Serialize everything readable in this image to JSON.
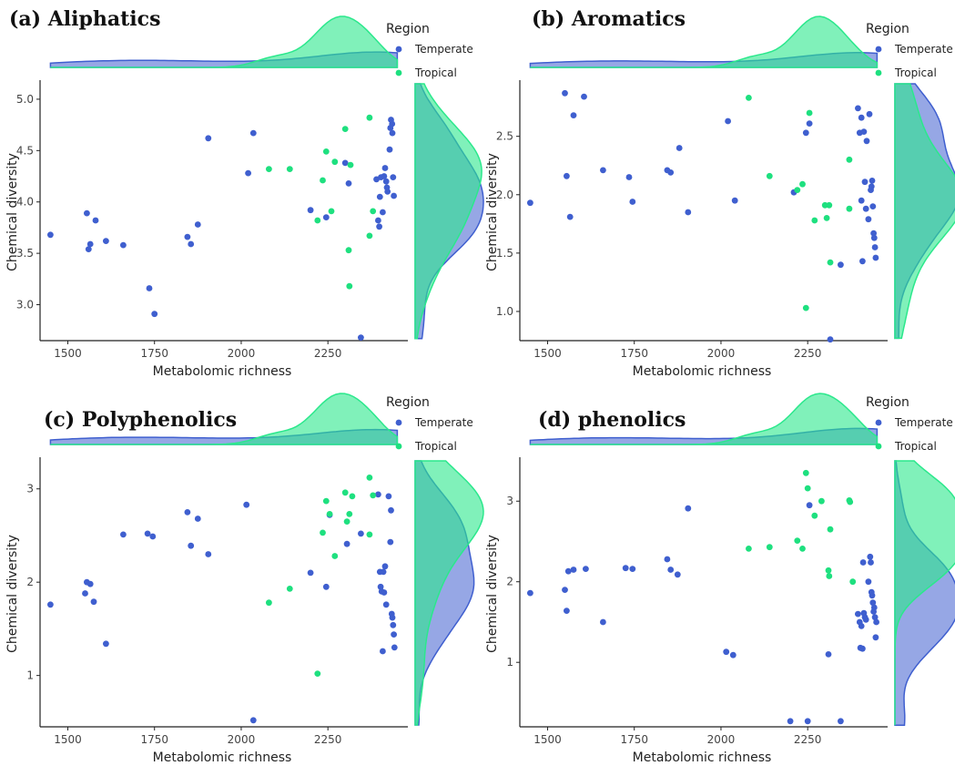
{
  "legend": {
    "title": "Region",
    "items": [
      {
        "label": "Temperate",
        "color": "#3F5FCF"
      },
      {
        "label": "Tropical",
        "color": "#1EE07F"
      }
    ]
  },
  "colors": {
    "temperate_fill": "#3F5FCF",
    "tropical_fill": "#2BE88C"
  },
  "chart_data": [
    {
      "type": "scatter",
      "title": "(a) Aliphatics",
      "xlabel": "Metabolomic richness",
      "ylabel": "Chemical diversity",
      "xlim": [
        1420,
        2470
      ],
      "ylim": [
        2.65,
        5.15
      ],
      "xticks": [
        1500,
        1750,
        2000,
        2250
      ],
      "yticks": [
        3.0,
        3.5,
        4.0,
        4.5,
        5.0
      ],
      "ytick_labels": [
        "3.0",
        "3.5",
        "4.0",
        "4.5",
        "5.0"
      ],
      "grid": false,
      "legend_position": "top-right",
      "series": [
        {
          "name": "Temperate",
          "points": [
            [
              1450,
              3.68
            ],
            [
              1555,
              3.89
            ],
            [
              1560,
              3.54
            ],
            [
              1565,
              3.59
            ],
            [
              1580,
              3.82
            ],
            [
              1610,
              3.62
            ],
            [
              1660,
              3.58
            ],
            [
              1735,
              3.16
            ],
            [
              1750,
              2.91
            ],
            [
              1845,
              3.66
            ],
            [
              1855,
              3.59
            ],
            [
              1875,
              3.78
            ],
            [
              1905,
              4.62
            ],
            [
              2020,
              4.28
            ],
            [
              2035,
              4.67
            ],
            [
              2200,
              3.92
            ],
            [
              2245,
              3.85
            ],
            [
              2300,
              4.38
            ],
            [
              2310,
              4.18
            ],
            [
              2345,
              2.68
            ],
            [
              2390,
              4.22
            ],
            [
              2395,
              3.82
            ],
            [
              2398,
              3.76
            ],
            [
              2400,
              4.05
            ],
            [
              2403,
              4.24
            ],
            [
              2408,
              3.9
            ],
            [
              2412,
              4.25
            ],
            [
              2415,
              4.33
            ],
            [
              2418,
              4.2
            ],
            [
              2420,
              4.14
            ],
            [
              2422,
              4.1
            ],
            [
              2428,
              4.51
            ],
            [
              2430,
              4.72
            ],
            [
              2432,
              4.8
            ],
            [
              2435,
              4.76
            ],
            [
              2436,
              4.67
            ],
            [
              2438,
              4.24
            ],
            [
              2440,
              4.06
            ]
          ]
        },
        {
          "name": "Tropical",
          "points": [
            [
              2080,
              4.32
            ],
            [
              2140,
              4.32
            ],
            [
              2220,
              3.82
            ],
            [
              2235,
              4.21
            ],
            [
              2245,
              4.49
            ],
            [
              2260,
              3.91
            ],
            [
              2270,
              4.39
            ],
            [
              2300,
              4.71
            ],
            [
              2310,
              3.53
            ],
            [
              2312,
              3.18
            ],
            [
              2315,
              4.36
            ],
            [
              2370,
              4.82
            ],
            [
              2370,
              3.67
            ],
            [
              2380,
              3.91
            ]
          ]
        }
      ]
    },
    {
      "type": "scatter",
      "title": "(b) Aromatics",
      "xlabel": "Metabolomic richness",
      "ylabel": "Chemical diversity",
      "xlim": [
        1420,
        2470
      ],
      "ylim": [
        0.75,
        2.95
      ],
      "xticks": [
        1500,
        1750,
        2000,
        2250
      ],
      "yticks": [
        1.0,
        1.5,
        2.0,
        2.5
      ],
      "ytick_labels": [
        "1.0",
        "1.5",
        "2.0",
        "2.5"
      ],
      "grid": false,
      "legend_position": "top-right",
      "series": [
        {
          "name": "Temperate",
          "points": [
            [
              1450,
              1.93
            ],
            [
              1550,
              2.87
            ],
            [
              1555,
              2.16
            ],
            [
              1565,
              1.81
            ],
            [
              1575,
              2.68
            ],
            [
              1605,
              2.84
            ],
            [
              1660,
              2.21
            ],
            [
              1735,
              2.15
            ],
            [
              1745,
              1.94
            ],
            [
              1845,
              2.21
            ],
            [
              1855,
              2.19
            ],
            [
              1880,
              2.4
            ],
            [
              1905,
              1.85
            ],
            [
              2020,
              2.63
            ],
            [
              2040,
              1.95
            ],
            [
              2210,
              2.02
            ],
            [
              2245,
              2.53
            ],
            [
              2255,
              2.61
            ],
            [
              2315,
              0.76
            ],
            [
              2345,
              1.4
            ],
            [
              2395,
              2.74
            ],
            [
              2400,
              2.53
            ],
            [
              2405,
              2.66
            ],
            [
              2405,
              1.95
            ],
            [
              2408,
              1.43
            ],
            [
              2412,
              2.54
            ],
            [
              2415,
              2.11
            ],
            [
              2418,
              1.88
            ],
            [
              2420,
              2.46
            ],
            [
              2425,
              1.79
            ],
            [
              2428,
              2.69
            ],
            [
              2432,
              2.04
            ],
            [
              2434,
              2.07
            ],
            [
              2436,
              2.12
            ],
            [
              2438,
              1.9
            ],
            [
              2440,
              1.67
            ],
            [
              2442,
              1.63
            ],
            [
              2444,
              1.55
            ],
            [
              2446,
              1.46
            ]
          ]
        },
        {
          "name": "Tropical",
          "points": [
            [
              2080,
              2.83
            ],
            [
              2140,
              2.16
            ],
            [
              2220,
              2.04
            ],
            [
              2235,
              2.09
            ],
            [
              2245,
              1.03
            ],
            [
              2255,
              2.7
            ],
            [
              2270,
              1.78
            ],
            [
              2300,
              1.91
            ],
            [
              2305,
              1.8
            ],
            [
              2312,
              1.91
            ],
            [
              2315,
              1.42
            ],
            [
              2370,
              2.3
            ],
            [
              2370,
              1.88
            ]
          ]
        }
      ]
    },
    {
      "type": "scatter",
      "title": "(c) Polyphenolics",
      "xlabel": "Metabolomic richness",
      "ylabel": "Chemical diversity",
      "xlim": [
        1420,
        2470
      ],
      "ylim": [
        0.45,
        3.3
      ],
      "xticks": [
        1500,
        1750,
        2000,
        2250
      ],
      "yticks": [
        1,
        2,
        3
      ],
      "ytick_labels": [
        "1",
        "2",
        "3"
      ],
      "grid": false,
      "legend_position": "top-right",
      "series": [
        {
          "name": "Temperate",
          "points": [
            [
              1450,
              1.76
            ],
            [
              1550,
              1.88
            ],
            [
              1555,
              2.0
            ],
            [
              1565,
              1.98
            ],
            [
              1575,
              1.79
            ],
            [
              1610,
              1.34
            ],
            [
              1660,
              2.51
            ],
            [
              1730,
              2.52
            ],
            [
              1745,
              2.49
            ],
            [
              1845,
              2.75
            ],
            [
              1855,
              2.39
            ],
            [
              1875,
              2.68
            ],
            [
              1905,
              2.3
            ],
            [
              2015,
              2.83
            ],
            [
              2035,
              0.52
            ],
            [
              2200,
              2.1
            ],
            [
              2245,
              1.95
            ],
            [
              2255,
              2.72
            ],
            [
              2305,
              2.41
            ],
            [
              2345,
              2.52
            ],
            [
              2395,
              2.94
            ],
            [
              2400,
              2.11
            ],
            [
              2402,
              1.95
            ],
            [
              2405,
              1.9
            ],
            [
              2408,
              1.26
            ],
            [
              2410,
              2.11
            ],
            [
              2412,
              1.89
            ],
            [
              2415,
              2.17
            ],
            [
              2418,
              1.76
            ],
            [
              2425,
              2.92
            ],
            [
              2430,
              2.43
            ],
            [
              2432,
              2.77
            ],
            [
              2434,
              1.66
            ],
            [
              2436,
              1.62
            ],
            [
              2438,
              1.54
            ],
            [
              2440,
              1.44
            ],
            [
              2442,
              1.3
            ]
          ]
        },
        {
          "name": "Tropical",
          "points": [
            [
              2080,
              1.78
            ],
            [
              2140,
              1.93
            ],
            [
              2220,
              1.02
            ],
            [
              2235,
              2.53
            ],
            [
              2245,
              2.87
            ],
            [
              2255,
              2.73
            ],
            [
              2270,
              2.28
            ],
            [
              2300,
              2.96
            ],
            [
              2305,
              2.65
            ],
            [
              2312,
              2.73
            ],
            [
              2320,
              2.92
            ],
            [
              2370,
              3.12
            ],
            [
              2370,
              2.51
            ],
            [
              2380,
              2.93
            ]
          ]
        }
      ]
    },
    {
      "type": "scatter",
      "title": "(d) phenolics",
      "xlabel": "Metabolomic richness",
      "ylabel": "Chemical diversity",
      "xlim": [
        1420,
        2470
      ],
      "ylim": [
        0.2,
        3.5
      ],
      "xticks": [
        1500,
        1750,
        2000,
        2250
      ],
      "yticks": [
        1,
        2,
        3
      ],
      "ytick_labels": [
        "1",
        "2",
        "3"
      ],
      "grid": false,
      "legend_position": "top-right",
      "series": [
        {
          "name": "Temperate",
          "points": [
            [
              1450,
              1.86
            ],
            [
              1550,
              1.9
            ],
            [
              1555,
              1.64
            ],
            [
              1560,
              2.13
            ],
            [
              1575,
              2.15
            ],
            [
              1610,
              2.16
            ],
            [
              1660,
              1.5
            ],
            [
              1725,
              2.17
            ],
            [
              1745,
              2.16
            ],
            [
              1845,
              2.28
            ],
            [
              1855,
              2.15
            ],
            [
              1875,
              2.09
            ],
            [
              1905,
              2.91
            ],
            [
              2015,
              1.13
            ],
            [
              2035,
              1.09
            ],
            [
              2200,
              0.27
            ],
            [
              2250,
              0.27
            ],
            [
              2255,
              2.95
            ],
            [
              2310,
              1.1
            ],
            [
              2345,
              0.27
            ],
            [
              2395,
              1.6
            ],
            [
              2400,
              1.5
            ],
            [
              2402,
              1.18
            ],
            [
              2405,
              1.45
            ],
            [
              2408,
              1.17
            ],
            [
              2410,
              2.24
            ],
            [
              2412,
              1.61
            ],
            [
              2415,
              1.56
            ],
            [
              2418,
              1.53
            ],
            [
              2425,
              2.0
            ],
            [
              2430,
              2.31
            ],
            [
              2432,
              2.24
            ],
            [
              2434,
              1.87
            ],
            [
              2436,
              1.83
            ],
            [
              2438,
              1.74
            ],
            [
              2440,
              1.63
            ],
            [
              2442,
              1.68
            ],
            [
              2444,
              1.56
            ],
            [
              2446,
              1.31
            ],
            [
              2448,
              1.5
            ]
          ]
        },
        {
          "name": "Tropical",
          "points": [
            [
              2080,
              2.41
            ],
            [
              2140,
              2.43
            ],
            [
              2220,
              2.51
            ],
            [
              2235,
              2.41
            ],
            [
              2245,
              3.35
            ],
            [
              2250,
              3.16
            ],
            [
              2270,
              2.82
            ],
            [
              2290,
              3.0
            ],
            [
              2310,
              2.14
            ],
            [
              2312,
              2.07
            ],
            [
              2315,
              2.65
            ],
            [
              2370,
              3.01
            ],
            [
              2372,
              2.99
            ],
            [
              2380,
              2.0
            ]
          ]
        }
      ]
    }
  ]
}
